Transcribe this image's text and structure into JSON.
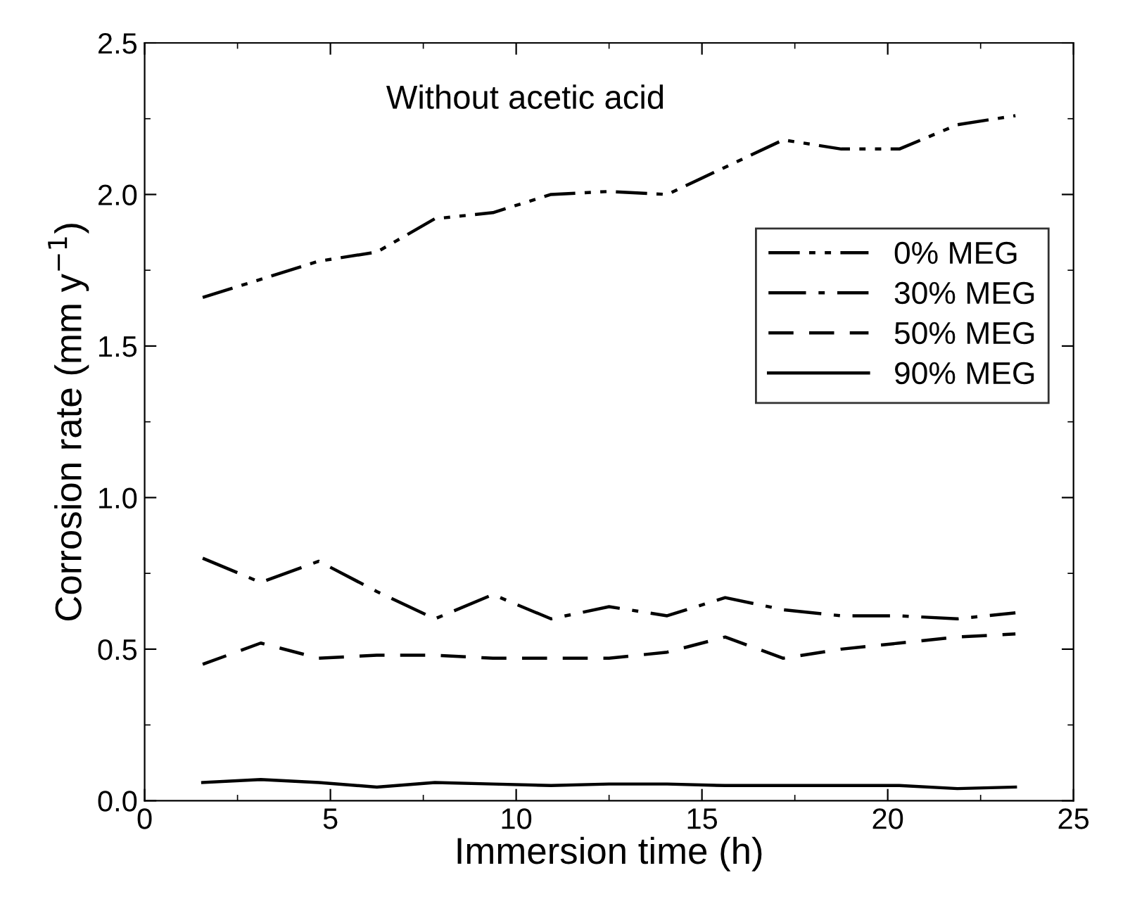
{
  "chart_data": {
    "type": "line",
    "title": "Without acetic acid",
    "xlabel": "Immersion time (h)",
    "ylabel": "Corrosion rate (mm y$^{−1}$)",
    "x": [
      1.5625,
      3.125,
      4.6875,
      6.25,
      7.8125,
      9.375,
      10.9375,
      12.5,
      14.0625,
      15.625,
      17.1875,
      18.75,
      20.3125,
      21.875,
      23.4375
    ],
    "xlim": [
      0,
      25
    ],
    "xticks": [
      0,
      5,
      10,
      15,
      20,
      25
    ],
    "ylim": [
      0,
      2.5
    ],
    "yticks": [
      {
        "value": 0,
        "label": "0.0"
      },
      0.5,
      {
        "value": 1,
        "label": "1.0"
      },
      1.5,
      {
        "value": 2,
        "label": "2.0"
      },
      2.5
    ],
    "legend": "right",
    "grid": false,
    "marker": "none",
    "series": [
      {
        "name": "0% MEG",
        "color": "#000000",
        "line_style": "dashdotdot",
        "values": [
          1.66,
          1.72,
          1.78,
          1.81,
          1.92,
          1.94,
          2.0,
          2.01,
          2.0,
          2.09,
          2.18,
          2.15,
          2.15,
          2.23,
          2.26
        ]
      },
      {
        "name": "30% MEG",
        "color": "#000000",
        "line_style": "dashdot",
        "values": [
          0.8,
          0.72,
          0.79,
          0.69,
          0.6,
          0.68,
          0.6,
          0.64,
          0.61,
          0.67,
          0.63,
          0.61,
          0.61,
          0.6,
          0.62
        ]
      },
      {
        "name": "50% MEG",
        "color": "#000000",
        "line_style": "dashed",
        "values": [
          0.45,
          0.52,
          0.47,
          0.48,
          0.48,
          0.47,
          0.47,
          0.47,
          0.49,
          0.54,
          0.47,
          0.5,
          0.52,
          0.54,
          0.55
        ]
      },
      {
        "name": "90% MEG",
        "color": "#000000",
        "line_style": "solid",
        "values": [
          0.06,
          0.07,
          0.06,
          0.045,
          0.06,
          0.055,
          0.05,
          0.055,
          0.055,
          0.05,
          0.05,
          0.05,
          0.05,
          0.04,
          0.045
        ]
      }
    ]
  }
}
